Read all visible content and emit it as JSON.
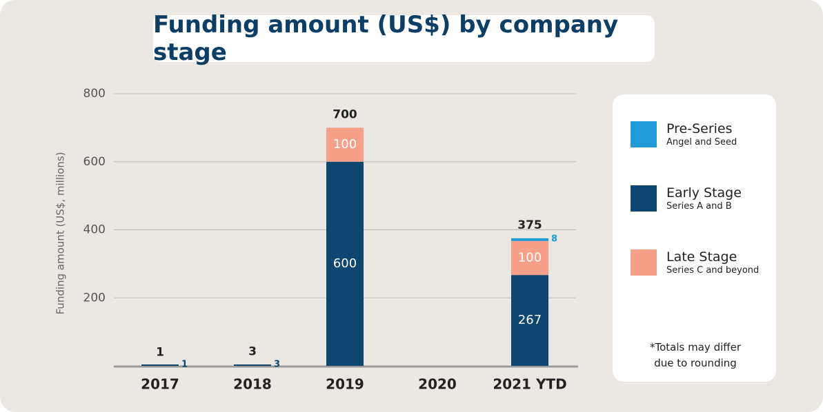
{
  "chart_data": {
    "type": "bar",
    "stacked": true,
    "title": "Funding amount (US$) by company stage",
    "y_label": "Funding amount (US$, millions)",
    "categories": [
      "2017",
      "2018",
      "2019",
      "2020",
      "2021 YTD"
    ],
    "series": [
      {
        "name": "Early Stage",
        "subtitle": "Series A and B",
        "color": "#0d4670",
        "values": [
          1,
          3,
          600,
          null,
          267
        ]
      },
      {
        "name": "Late Stage",
        "subtitle": "Series C and beyond",
        "color": "#f6a08a",
        "values": [
          null,
          null,
          100,
          null,
          100
        ]
      },
      {
        "name": "Pre-Series",
        "subtitle": "Angel and Seed",
        "color": "#1e9bd7",
        "values": [
          null,
          null,
          null,
          null,
          8
        ]
      }
    ],
    "legend_order": [
      2,
      0,
      1
    ],
    "totals": [
      1,
      3,
      700,
      null,
      375
    ],
    "ylim": [
      0,
      800
    ],
    "yticks": [
      200,
      400,
      600,
      800
    ],
    "grid": true,
    "note": "*Totals may differ due to rounding"
  }
}
